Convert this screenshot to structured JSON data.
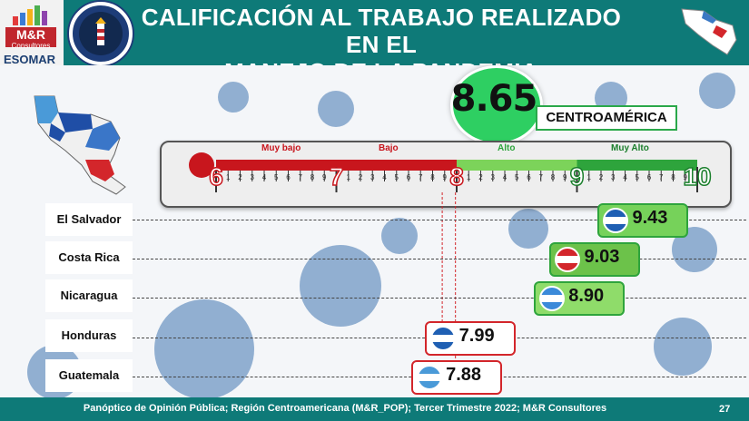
{
  "header": {
    "title_line1": "CALIFICACIÓN AL TRABAJO REALIZADO EN EL",
    "title_line2": "MANEJO DE LA PANDEMIA"
  },
  "logo": {
    "name": "M&R",
    "subname": "Consultores",
    "esomar": "ESOMAR",
    "member": "member"
  },
  "overall": {
    "value": "8.65",
    "region": "CENTROAMÉRICA"
  },
  "scale": {
    "bands": [
      "Muy bajo",
      "Bajo",
      "Alto",
      "Muy Alto"
    ],
    "majors": [
      "6",
      "7",
      "8",
      "9",
      "10"
    ],
    "minor_ticks": [
      "1",
      "2",
      "3",
      "4",
      "5",
      "6",
      "7",
      "8",
      "9"
    ],
    "colors": {
      "red": "#c8161d",
      "light_green": "#7cd35a",
      "green": "#2ea43c",
      "dark_green": "#1b7f2c"
    }
  },
  "chart_data": {
    "type": "bar",
    "title": "CALIFICACIÓN AL TRABAJO REALIZADO EN EL MANEJO DE LA PANDEMIA",
    "categories": [
      "El Salvador",
      "Costa Rica",
      "Nicaragua",
      "Honduras",
      "Guatemala"
    ],
    "values": [
      9.43,
      9.03,
      8.9,
      7.99,
      7.88
    ],
    "labels": [
      "9.43",
      "9.03",
      "8.90",
      "7.99",
      "7.88"
    ],
    "xlim": [
      6,
      10
    ],
    "reference": {
      "label": "CENTROAMÉRICA",
      "value": 8.65
    }
  },
  "footer": {
    "source": "Panóptico de Opinión Pública; Región Centroamericana (M&R_POP); Tercer Trimestre 2022; M&R Consultores",
    "page": "27"
  }
}
